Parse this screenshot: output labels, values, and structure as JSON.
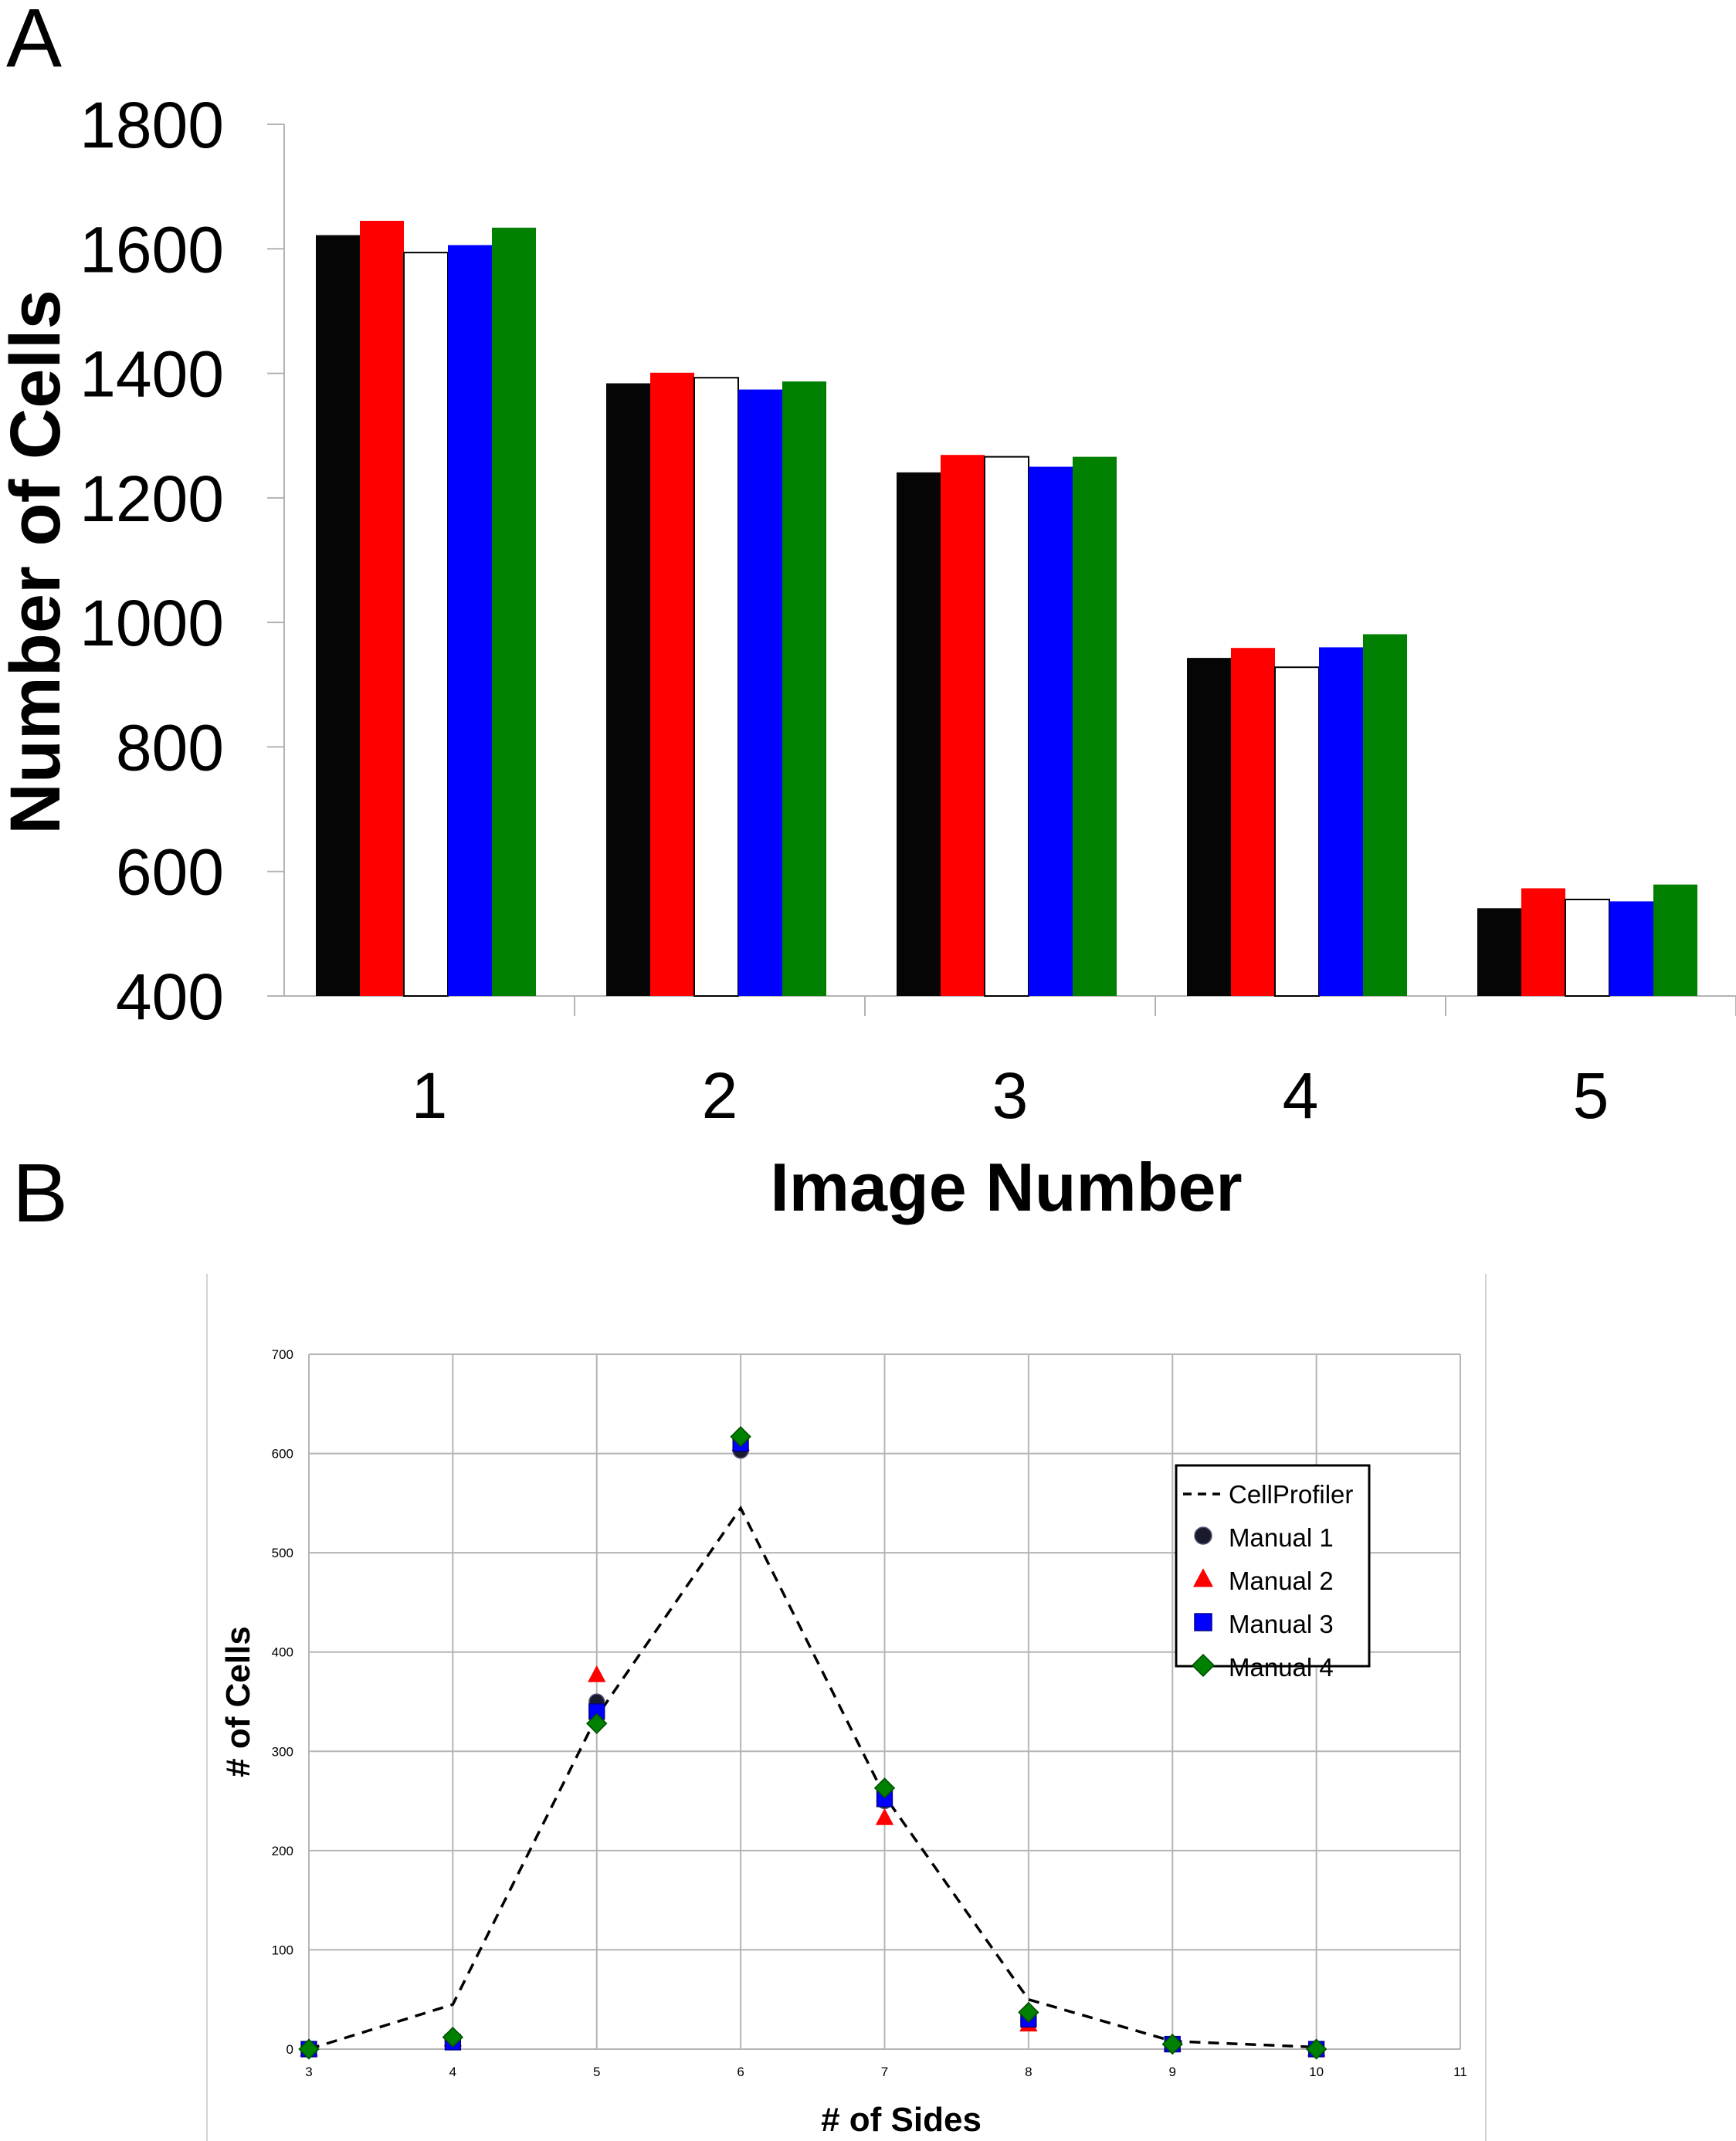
{
  "panels": {
    "a": {
      "label": "A"
    },
    "b": {
      "label": "B"
    }
  },
  "chart_data": [
    {
      "type": "bar",
      "panel": "A",
      "title": "",
      "xlabel": "Image Number",
      "ylabel": "Number of Cells",
      "ylim": [
        400,
        1800
      ],
      "yticks": [
        400,
        600,
        800,
        1000,
        1200,
        1400,
        1600,
        1800
      ],
      "categories": [
        "1",
        "2",
        "3",
        "4",
        "5"
      ],
      "grid": false,
      "legend": "none",
      "series": [
        {
          "color": "#050505",
          "values": [
            1622,
            1384,
            1241,
            943,
            541
          ]
        },
        {
          "color": "#ff0000",
          "values": [
            1645,
            1401,
            1269,
            959,
            573
          ]
        },
        {
          "color": "#ffffff",
          "values": [
            1594,
            1393,
            1266,
            928,
            555
          ]
        },
        {
          "color": "#0000ff",
          "values": [
            1606,
            1374,
            1250,
            960,
            552
          ]
        },
        {
          "color": "#008000",
          "values": [
            1634,
            1387,
            1266,
            981,
            579
          ]
        }
      ]
    },
    {
      "type": "scatter",
      "panel": "B",
      "title": "",
      "xlabel": "# of Sides",
      "ylabel": "# of Cells",
      "xlim": [
        3,
        11
      ],
      "ylim": [
        0,
        700
      ],
      "xticks": [
        3,
        4,
        5,
        6,
        7,
        8,
        9,
        10,
        11
      ],
      "yticks": [
        0,
        100,
        200,
        300,
        400,
        500,
        600,
        700
      ],
      "grid": true,
      "legend": "upper-right",
      "series": [
        {
          "name": "CellProfiler",
          "style": "dashed-line",
          "color": "#000000",
          "x": [
            3,
            4,
            5,
            6,
            7,
            8,
            9,
            10
          ],
          "y": [
            0,
            45,
            335,
            545,
            255,
            50,
            8,
            2
          ]
        },
        {
          "name": "Manual 1",
          "marker": "circle",
          "color": "#1a1a2e",
          "x": [
            3,
            4,
            5,
            6,
            7,
            8,
            9,
            10
          ],
          "y": [
            0,
            8,
            350,
            603,
            250,
            28,
            5,
            0
          ]
        },
        {
          "name": "Manual 2",
          "marker": "triangle",
          "color": "#ff0000",
          "x": [
            3,
            4,
            5,
            6,
            7,
            8,
            9,
            10
          ],
          "y": [
            0,
            10,
            377,
            610,
            233,
            25,
            5,
            0
          ]
        },
        {
          "name": "Manual 3",
          "marker": "square",
          "color": "#0000ff",
          "x": [
            3,
            4,
            5,
            6,
            7,
            8,
            9,
            10
          ],
          "y": [
            0,
            7,
            340,
            610,
            252,
            30,
            5,
            0
          ]
        },
        {
          "name": "Manual 4",
          "marker": "diamond",
          "color": "#008000",
          "x": [
            3,
            4,
            5,
            6,
            7,
            8,
            9,
            10
          ],
          "y": [
            0,
            12,
            328,
            617,
            263,
            37,
            5,
            0
          ]
        }
      ]
    }
  ]
}
